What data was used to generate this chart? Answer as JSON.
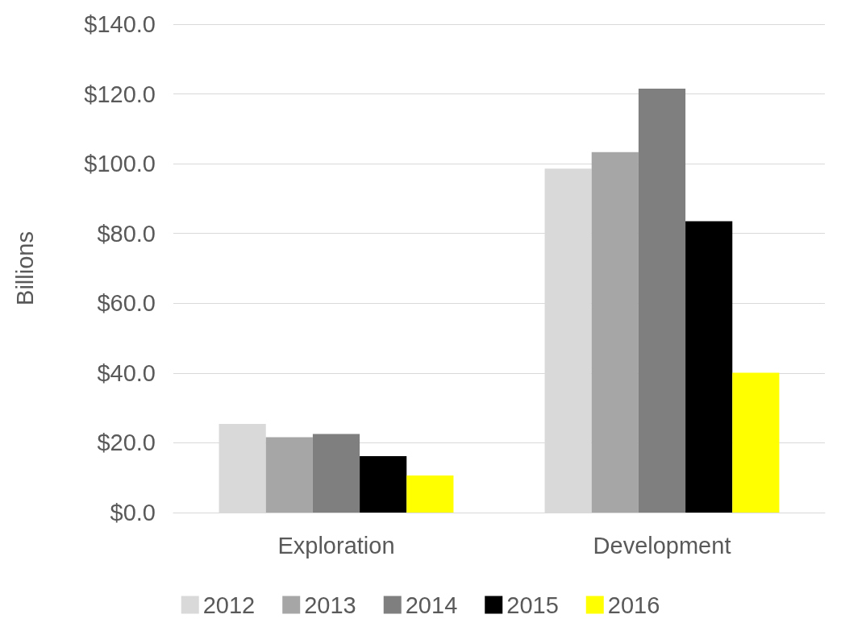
{
  "chart_data": {
    "type": "bar",
    "ylabel": "Billions",
    "categories": [
      "Exploration",
      "Development"
    ],
    "series": [
      {
        "name": "2012",
        "color": "#d9d9d9",
        "values": [
          25.4,
          98.6
        ]
      },
      {
        "name": "2013",
        "color": "#a6a6a6",
        "values": [
          21.6,
          103.3
        ]
      },
      {
        "name": "2014",
        "color": "#7f7f7f",
        "values": [
          22.5,
          121.5
        ]
      },
      {
        "name": "2015",
        "color": "#000000",
        "values": [
          16.2,
          83.5
        ]
      },
      {
        "name": "2016",
        "color": "#ffff00",
        "values": [
          10.6,
          40.1
        ]
      }
    ],
    "ylim": [
      0,
      140
    ],
    "yticks": [
      {
        "value": 0,
        "label": "$0.0"
      },
      {
        "value": 20,
        "label": "$20.0"
      },
      {
        "value": 40,
        "label": "$40.0"
      },
      {
        "value": 60,
        "label": "$60.0"
      },
      {
        "value": 80,
        "label": "$80.0"
      },
      {
        "value": 100,
        "label": "$100.0"
      },
      {
        "value": 120,
        "label": "$120.0"
      },
      {
        "value": 140,
        "label": "$140.0"
      }
    ],
    "grid": "y",
    "legend": "bottom"
  }
}
